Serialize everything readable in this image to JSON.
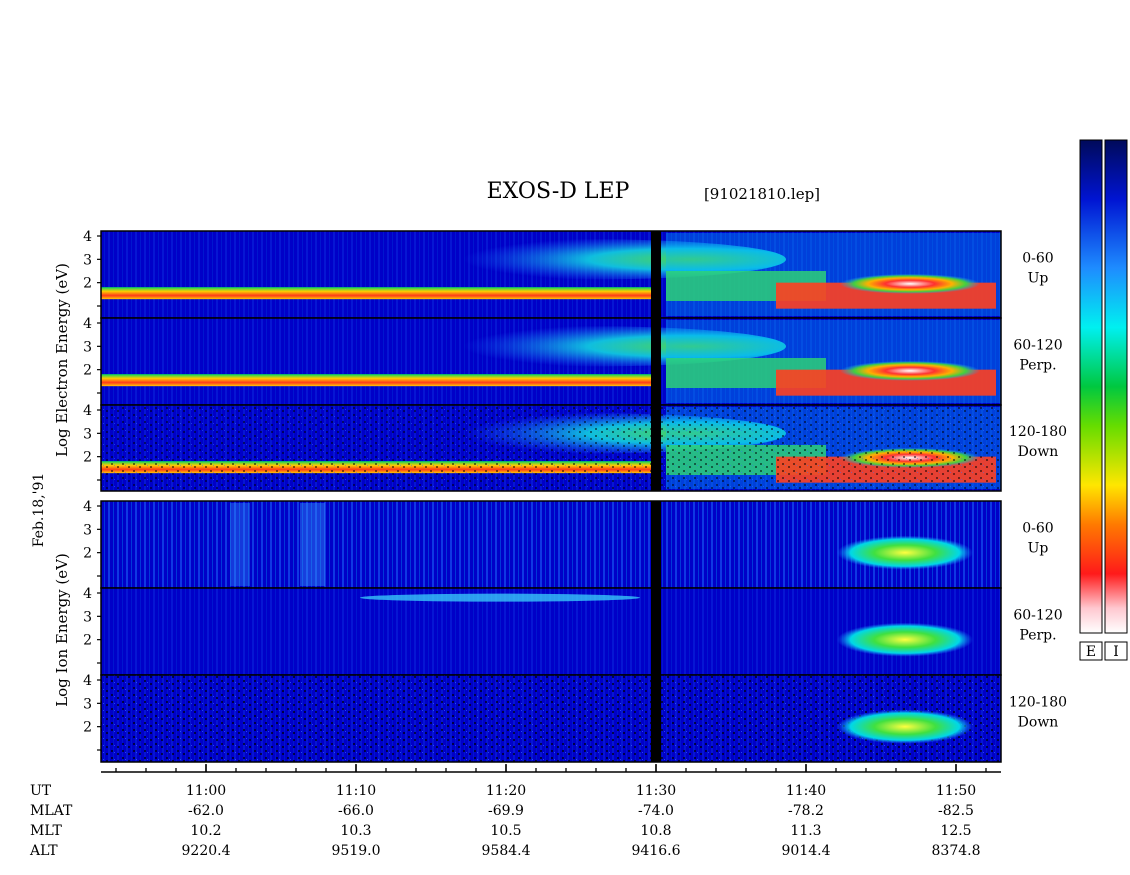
{
  "header": {
    "title": "EXOS-D LEP",
    "file": "[91021810.lep]"
  },
  "side_labels": {
    "date": "Feb.18,'91",
    "electron_axis": "Log  Electron  Energy (eV)",
    "ion_axis": "Log   Ion   Energy (eV)"
  },
  "colors": {
    "background": "#0000c8",
    "frame": "#000000",
    "gap": "#000000"
  },
  "colorbars": [
    {
      "label": "E"
    },
    {
      "label": "I"
    }
  ],
  "footer": {
    "row_labels": [
      "UT",
      "MLAT",
      "MLT",
      "ALT"
    ],
    "ut": [
      "11:00",
      "11:10",
      "11:20",
      "11:30",
      "11:40",
      "11:50"
    ],
    "mlat": [
      "-62.0",
      "-66.0",
      "-69.9",
      "-74.0",
      "-78.2",
      "-82.5"
    ],
    "mlt": [
      "10.2",
      "10.3",
      "10.5",
      "10.8",
      "11.3",
      "12.5"
    ],
    "alt": [
      "9220.4",
      "9519.0",
      "9584.4",
      "9416.6",
      "9014.4",
      "8374.8"
    ]
  },
  "chart_data": {
    "type": "heatmap",
    "title": "EXOS-D LEP",
    "x_unit": "UT",
    "x_range": [
      "10:53",
      "11:53"
    ],
    "y_scale": "log10 energy (eV)",
    "y_ticks": [
      "1",
      "2",
      "3",
      "4"
    ],
    "data_gap_at": "11:30",
    "species": [
      {
        "name": "Electron",
        "panels": [
          {
            "pitch": "0-60",
            "direction": "Up"
          },
          {
            "pitch": "60-120",
            "direction": "Perp."
          },
          {
            "pitch": "120-180",
            "direction": "Down"
          }
        ]
      },
      {
        "name": "Ion",
        "panels": [
          {
            "pitch": "0-60",
            "direction": "Up"
          },
          {
            "pitch": "60-120",
            "direction": "Perp."
          },
          {
            "pitch": "120-180",
            "direction": "Down"
          }
        ]
      }
    ]
  }
}
